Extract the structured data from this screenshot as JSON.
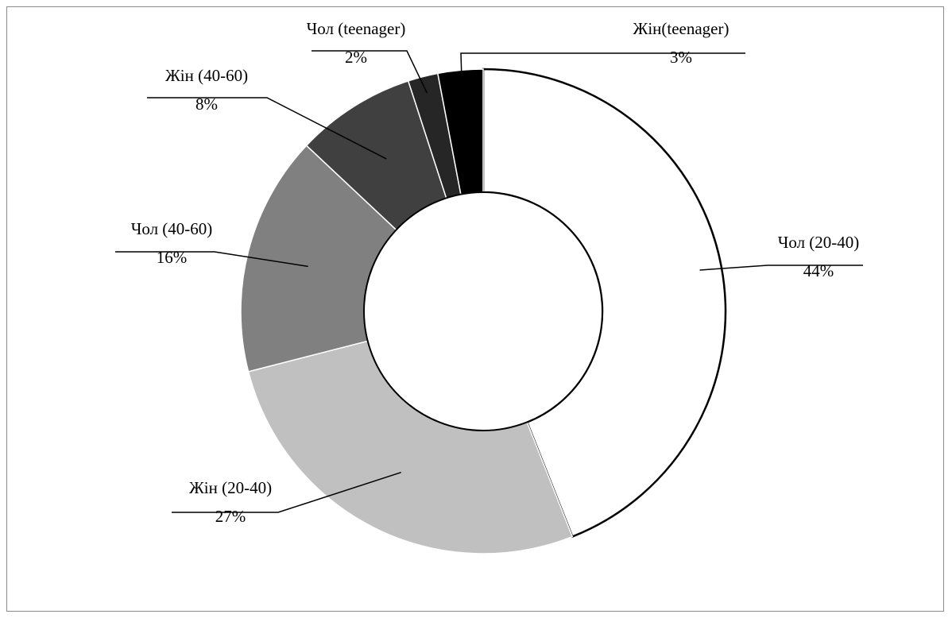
{
  "chart_data": {
    "type": "pie",
    "variant": "donut",
    "title": "",
    "legend": "none",
    "labels": [
      "Чол (20-40)",
      "Жін (20-40)",
      "Чол (40-60)",
      "Жін (40-60)",
      "Чол (teenager)",
      "Жін(teenager)"
    ],
    "values": [
      44,
      27,
      16,
      8,
      2,
      3
    ],
    "value_labels": [
      "44%",
      "27%",
      "16%",
      "8%",
      "2%",
      "3%"
    ],
    "colors": [
      "#ffffff",
      "#c0c0c0",
      "#808080",
      "#404040",
      "#262626",
      "#000000"
    ]
  }
}
